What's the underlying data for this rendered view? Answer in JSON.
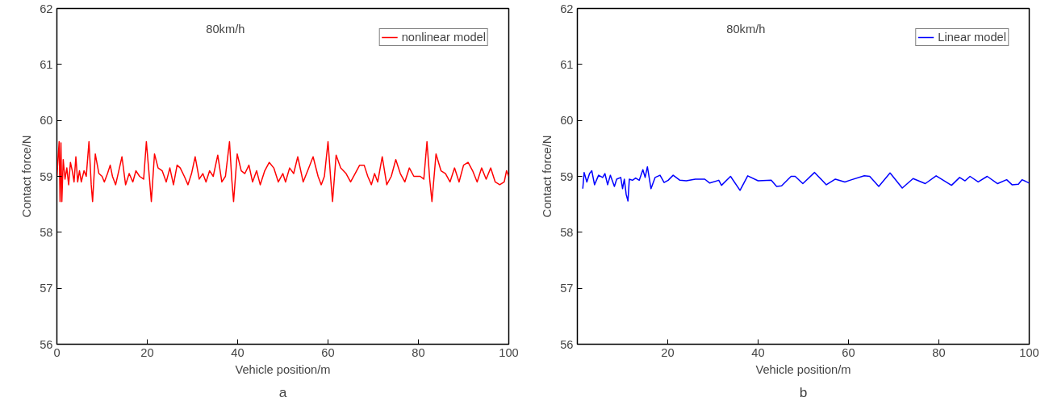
{
  "chart_data": [
    {
      "type": "line",
      "xlabel": "Vehicle position/m",
      "ylabel": "Contact force/N",
      "annotations": [
        "80km/h",
        "a"
      ],
      "xlim": [
        0,
        100
      ],
      "ylim": [
        56,
        62
      ],
      "xticks": [
        0,
        20,
        40,
        60,
        80,
        100
      ],
      "yticks": [
        56,
        57,
        58,
        59,
        60,
        61,
        62
      ],
      "grid": false,
      "legend": "top right",
      "series": [
        {
          "name": "nonlinear model",
          "color": "#ff0000",
          "x": [
            0,
            0.5,
            0.7,
            0.9,
            1.1,
            1.4,
            1.8,
            2.2,
            2.6,
            3.0,
            3.4,
            3.8,
            4.2,
            4.6,
            5.0,
            5.4,
            6.0,
            6.5,
            7.1,
            7.6,
            7.9,
            8.5,
            9.3,
            10.0,
            10.5,
            11.2,
            11.8,
            12.3,
            13.0,
            13.7,
            14.4,
            15.2,
            16.0,
            16.8,
            17.5,
            18.3,
            19.2,
            19.8,
            20.5,
            20.9,
            21.6,
            22.4,
            23.3,
            24.2,
            25.0,
            25.8,
            26.6,
            27.3,
            28.2,
            29.0,
            29.8,
            30.6,
            31.5,
            32.3,
            33.0,
            33.8,
            34.6,
            35.6,
            36.5,
            37.3,
            38.2,
            38.7,
            39.1,
            39.9,
            40.8,
            41.6,
            42.5,
            43.3,
            44.2,
            45.0,
            46.0,
            47.0,
            48.0,
            49.0,
            50.0,
            50.6,
            51.5,
            52.4,
            53.3,
            54.5,
            55.5,
            56.7,
            57.8,
            58.5,
            59.2,
            60.0,
            60.6,
            61.0,
            61.8,
            62.8,
            64.0,
            65.0,
            66.0,
            67.0,
            68.0,
            68.8,
            69.6,
            70.3,
            71.0,
            72.0,
            73.0,
            74.0,
            75.0,
            76.0,
            77.0,
            78.0,
            79.0,
            80.4,
            81.2,
            81.9,
            82.5,
            83.0,
            83.9,
            85.0,
            86.0,
            87.0,
            88.0,
            89.0,
            90.0,
            91.0,
            92.0,
            93.0,
            94.0,
            95.0,
            96.0,
            97.0,
            98.0,
            99.0,
            99.5,
            100
          ],
          "values": [
            59.0,
            59.62,
            58.55,
            59.6,
            58.55,
            59.3,
            58.95,
            59.15,
            58.85,
            59.25,
            59.1,
            58.9,
            59.35,
            58.9,
            59.1,
            58.9,
            59.1,
            59.0,
            59.62,
            58.85,
            58.55,
            59.4,
            59.05,
            59.0,
            58.9,
            59.05,
            59.2,
            59.0,
            58.85,
            59.1,
            59.35,
            58.85,
            59.05,
            58.9,
            59.1,
            59.0,
            58.95,
            59.62,
            58.95,
            58.55,
            59.4,
            59.15,
            59.1,
            58.9,
            59.15,
            58.85,
            59.2,
            59.15,
            59.0,
            58.85,
            59.05,
            59.35,
            58.95,
            59.05,
            58.9,
            59.1,
            59.0,
            59.38,
            58.9,
            59.0,
            59.62,
            58.95,
            58.55,
            59.4,
            59.1,
            59.05,
            59.2,
            58.9,
            59.1,
            58.85,
            59.1,
            59.25,
            59.15,
            58.9,
            59.05,
            58.9,
            59.15,
            59.05,
            59.35,
            58.9,
            59.1,
            59.35,
            59.0,
            58.85,
            59.0,
            59.62,
            58.95,
            58.55,
            59.38,
            59.15,
            59.05,
            58.9,
            59.05,
            59.2,
            59.2,
            59.0,
            58.85,
            59.05,
            58.9,
            59.35,
            58.85,
            59.0,
            59.3,
            59.05,
            58.9,
            59.15,
            59.0,
            59.0,
            58.95,
            59.62,
            58.95,
            58.55,
            59.4,
            59.1,
            59.05,
            58.9,
            59.15,
            58.9,
            59.2,
            59.25,
            59.1,
            58.9,
            59.15,
            58.95,
            59.15,
            58.9,
            58.85,
            58.9,
            59.1,
            59.0
          ]
        }
      ]
    },
    {
      "type": "line",
      "xlabel": "Vehicle position/m",
      "ylabel": "Contact force/N",
      "annotations": [
        "80km/h",
        "b"
      ],
      "xlim": [
        0,
        100
      ],
      "ylim": [
        56,
        62
      ],
      "xticks": [
        20,
        40,
        60,
        80,
        100
      ],
      "yticks": [
        56,
        57,
        58,
        59,
        60,
        61,
        62
      ],
      "grid": false,
      "legend": "top right",
      "series": [
        {
          "name": "Linear model",
          "color": "#0000ff",
          "x": [
            1.2,
            1.5,
            2.1,
            2.7,
            3.2,
            3.8,
            4.7,
            5.6,
            6.1,
            6.7,
            7.3,
            8.2,
            8.7,
            9.6,
            10.0,
            10.4,
            10.8,
            11.2,
            11.5,
            12.2,
            12.9,
            13.7,
            14.5,
            15.0,
            15.5,
            16.3,
            17.2,
            18.3,
            19.2,
            20.1,
            21.2,
            22.7,
            24.1,
            26.1,
            28.2,
            29.3,
            31.3,
            31.9,
            33.9,
            36.0,
            37.7,
            40.0,
            42.9,
            44.1,
            45.2,
            47.3,
            48.2,
            49.9,
            52.5,
            55.1,
            57.1,
            59.2,
            60.3,
            63.5,
            64.7,
            66.7,
            69.2,
            71.9,
            74.3,
            77.0,
            79.4,
            82.8,
            84.6,
            85.8,
            86.9,
            88.7,
            90.7,
            93.0,
            95.0,
            96.2,
            97.6,
            98.4,
            100.0
          ],
          "values": [
            58.78,
            59.07,
            58.9,
            59.05,
            59.1,
            58.85,
            59.02,
            58.98,
            59.05,
            58.85,
            59.02,
            58.82,
            58.95,
            58.98,
            58.78,
            58.95,
            58.68,
            58.56,
            58.95,
            58.93,
            58.97,
            58.93,
            59.12,
            58.98,
            59.17,
            58.78,
            58.98,
            59.02,
            58.89,
            58.93,
            59.02,
            58.93,
            58.92,
            58.95,
            58.95,
            58.88,
            58.93,
            58.84,
            59.0,
            58.75,
            59.01,
            58.92,
            58.93,
            58.82,
            58.83,
            59.0,
            59.0,
            58.87,
            59.07,
            58.85,
            58.95,
            58.9,
            58.93,
            59.01,
            59.0,
            58.82,
            59.06,
            58.79,
            58.96,
            58.87,
            59.01,
            58.84,
            58.98,
            58.92,
            59.0,
            58.9,
            59.0,
            58.87,
            58.94,
            58.85,
            58.86,
            58.94,
            58.88
          ]
        }
      ]
    }
  ]
}
